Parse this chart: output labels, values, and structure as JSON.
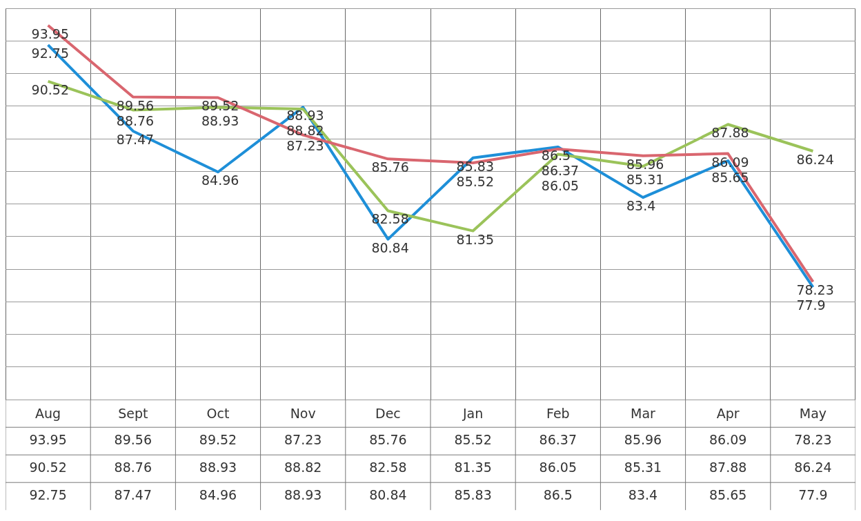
{
  "chart_data": {
    "type": "line",
    "categories": [
      "Aug",
      "Sept",
      "Oct",
      "Nov",
      "Dec",
      "Jan",
      "Feb",
      "Mar",
      "Apr",
      "May"
    ],
    "series": [
      {
        "color": "#d9666f",
        "values": [
          93.95,
          89.56,
          89.52,
          87.23,
          85.76,
          85.52,
          86.37,
          85.96,
          86.09,
          78.23
        ]
      },
      {
        "color": "#9bc35a",
        "values": [
          90.52,
          88.76,
          88.93,
          88.82,
          82.58,
          81.35,
          86.05,
          85.31,
          87.88,
          86.24
        ]
      },
      {
        "color": "#1e8fd8",
        "values": [
          92.75,
          87.47,
          84.96,
          88.93,
          80.84,
          85.83,
          86.5,
          83.4,
          85.65,
          77.9
        ]
      }
    ],
    "annotations": [
      {
        "text": "93.95",
        "x": "Aug",
        "y": 93.95
      },
      {
        "text": "89.56",
        "x": "Sept",
        "y": 89.56
      },
      {
        "text": "89.52",
        "x": "Oct",
        "y": 89.52
      },
      {
        "text": "87.23",
        "x": "Nov",
        "y": 87.23
      },
      {
        "text": "85.76",
        "x": "Dec",
        "y": 85.76
      },
      {
        "text": "85.52",
        "x": "Jan",
        "y": 85.52
      },
      {
        "text": "86.37",
        "x": "Feb",
        "y": 86.37
      },
      {
        "text": "85.96",
        "x": "Mar",
        "y": 85.96
      },
      {
        "text": "86.09",
        "x": "Apr",
        "y": 86.09
      },
      {
        "text": "78.23",
        "x": "May",
        "y": 78.23
      },
      {
        "text": "90.52",
        "x": "Aug",
        "y": 90.52
      },
      {
        "text": "88.76",
        "x": "Sept",
        "y": 88.76
      },
      {
        "text": "88.93",
        "x": "Oct",
        "y": 88.93
      },
      {
        "text": "88.82",
        "x": "Nov",
        "y": 88.82
      },
      {
        "text": "82.58",
        "x": "Dec",
        "y": 82.58
      },
      {
        "text": "81.35",
        "x": "Jan",
        "y": 81.35
      },
      {
        "text": "86.05",
        "x": "Feb",
        "y": 86.05
      },
      {
        "text": "85.31",
        "x": "Mar",
        "y": 85.31
      },
      {
        "text": "87.88",
        "x": "Apr",
        "y": 87.88
      },
      {
        "text": "86.24",
        "x": "May",
        "y": 86.24
      },
      {
        "text": "92.75",
        "x": "Aug",
        "y": 92.75
      },
      {
        "text": "87.47",
        "x": "Sept",
        "y": 87.47
      },
      {
        "text": "84.96",
        "x": "Oct",
        "y": 84.96
      },
      {
        "text": "88.93",
        "x": "Nov",
        "y": 88.93
      },
      {
        "text": "80.84",
        "x": "Dec",
        "y": 80.84
      },
      {
        "text": "85.83",
        "x": "Jan",
        "y": 85.83
      },
      {
        "text": "86.5",
        "x": "Feb",
        "y": 86.5
      },
      {
        "text": "83.4",
        "x": "Mar",
        "y": 83.4
      },
      {
        "text": "85.65",
        "x": "Apr",
        "y": 85.65
      },
      {
        "text": "77.9",
        "x": "May",
        "y": 77.9
      }
    ],
    "data_labels": true,
    "grid": true,
    "marker": "none",
    "line_style": "solid"
  }
}
